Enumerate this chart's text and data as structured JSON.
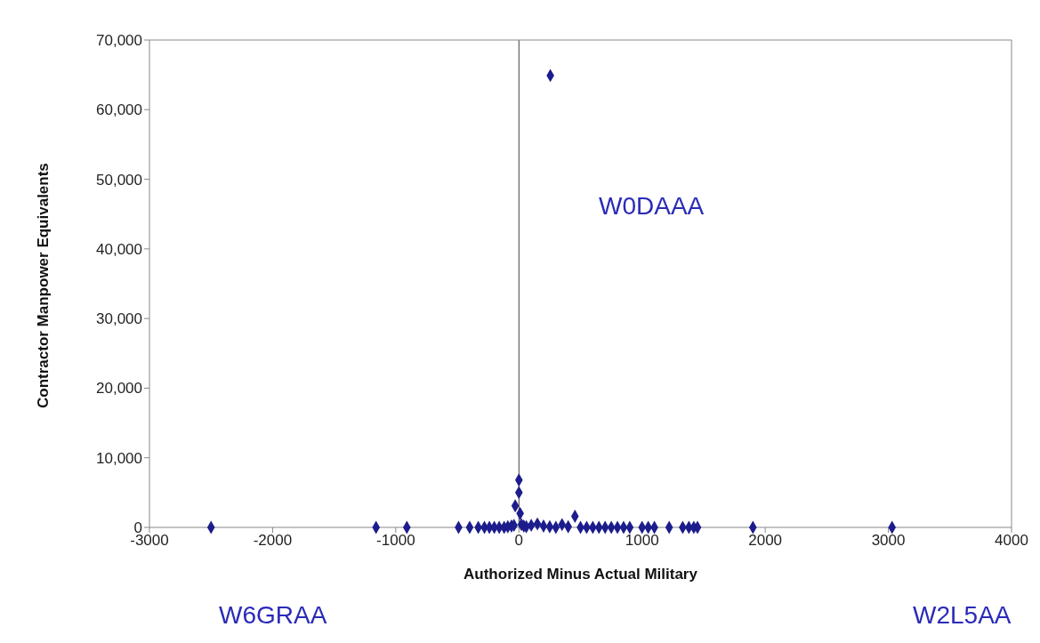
{
  "chart_data": {
    "type": "scatter",
    "xlabel": "Authorized Minus Actual Military",
    "ylabel": "Contractor Manpower Equivalents",
    "x": [
      -2500,
      -1160,
      -910,
      -490,
      -400,
      -330,
      -280,
      -240,
      -200,
      -160,
      -120,
      -90,
      -60,
      -40,
      -20,
      -10,
      0,
      10,
      -30,
      0,
      0,
      20,
      40,
      60,
      100,
      150,
      200,
      250,
      255,
      300,
      350,
      400,
      455,
      500,
      550,
      600,
      650,
      700,
      750,
      800,
      850,
      900,
      1000,
      1050,
      1100,
      1220,
      1330,
      1380,
      1420,
      1450,
      1900,
      3030
    ],
    "series": [
      {
        "color": "#1c1c8c",
        "values": [
          0,
          0,
          0,
          0,
          0,
          0,
          0,
          0,
          0,
          0,
          0,
          100,
          200,
          300,
          null,
          null,
          null,
          2000,
          3100,
          5000,
          6800,
          400,
          200,
          100,
          300,
          500,
          200,
          100,
          64900,
          0,
          400,
          100,
          1600,
          0,
          0,
          0,
          0,
          0,
          0,
          0,
          0,
          0,
          0,
          0,
          0,
          0,
          0,
          0,
          0,
          0,
          0,
          0
        ]
      }
    ],
    "xlim": [
      -3000,
      4000
    ],
    "xticks": [
      -3000,
      -2000,
      -1000,
      0,
      1000,
      2000,
      3000,
      4000
    ],
    "ylim": [
      0,
      70000
    ],
    "yticks": [
      {
        "value": 0,
        "label": "0"
      },
      {
        "value": 10000,
        "label": "10,000"
      },
      {
        "value": 20000,
        "label": "20,000"
      },
      {
        "value": 30000,
        "label": "30,000"
      },
      {
        "value": 40000,
        "label": "40,000"
      },
      {
        "value": 50000,
        "label": "50,000"
      },
      {
        "value": 60000,
        "label": "60,000"
      },
      {
        "value": 70000,
        "label": "70,000"
      }
    ],
    "ref_lines": [
      {
        "axis": "x",
        "value": 0,
        "color": "#404040"
      }
    ],
    "annotations": [
      "W0DAAA",
      "W6GRAA",
      "W2L5AA"
    ],
    "marker": "diamond",
    "grid": false,
    "legend": false
  }
}
